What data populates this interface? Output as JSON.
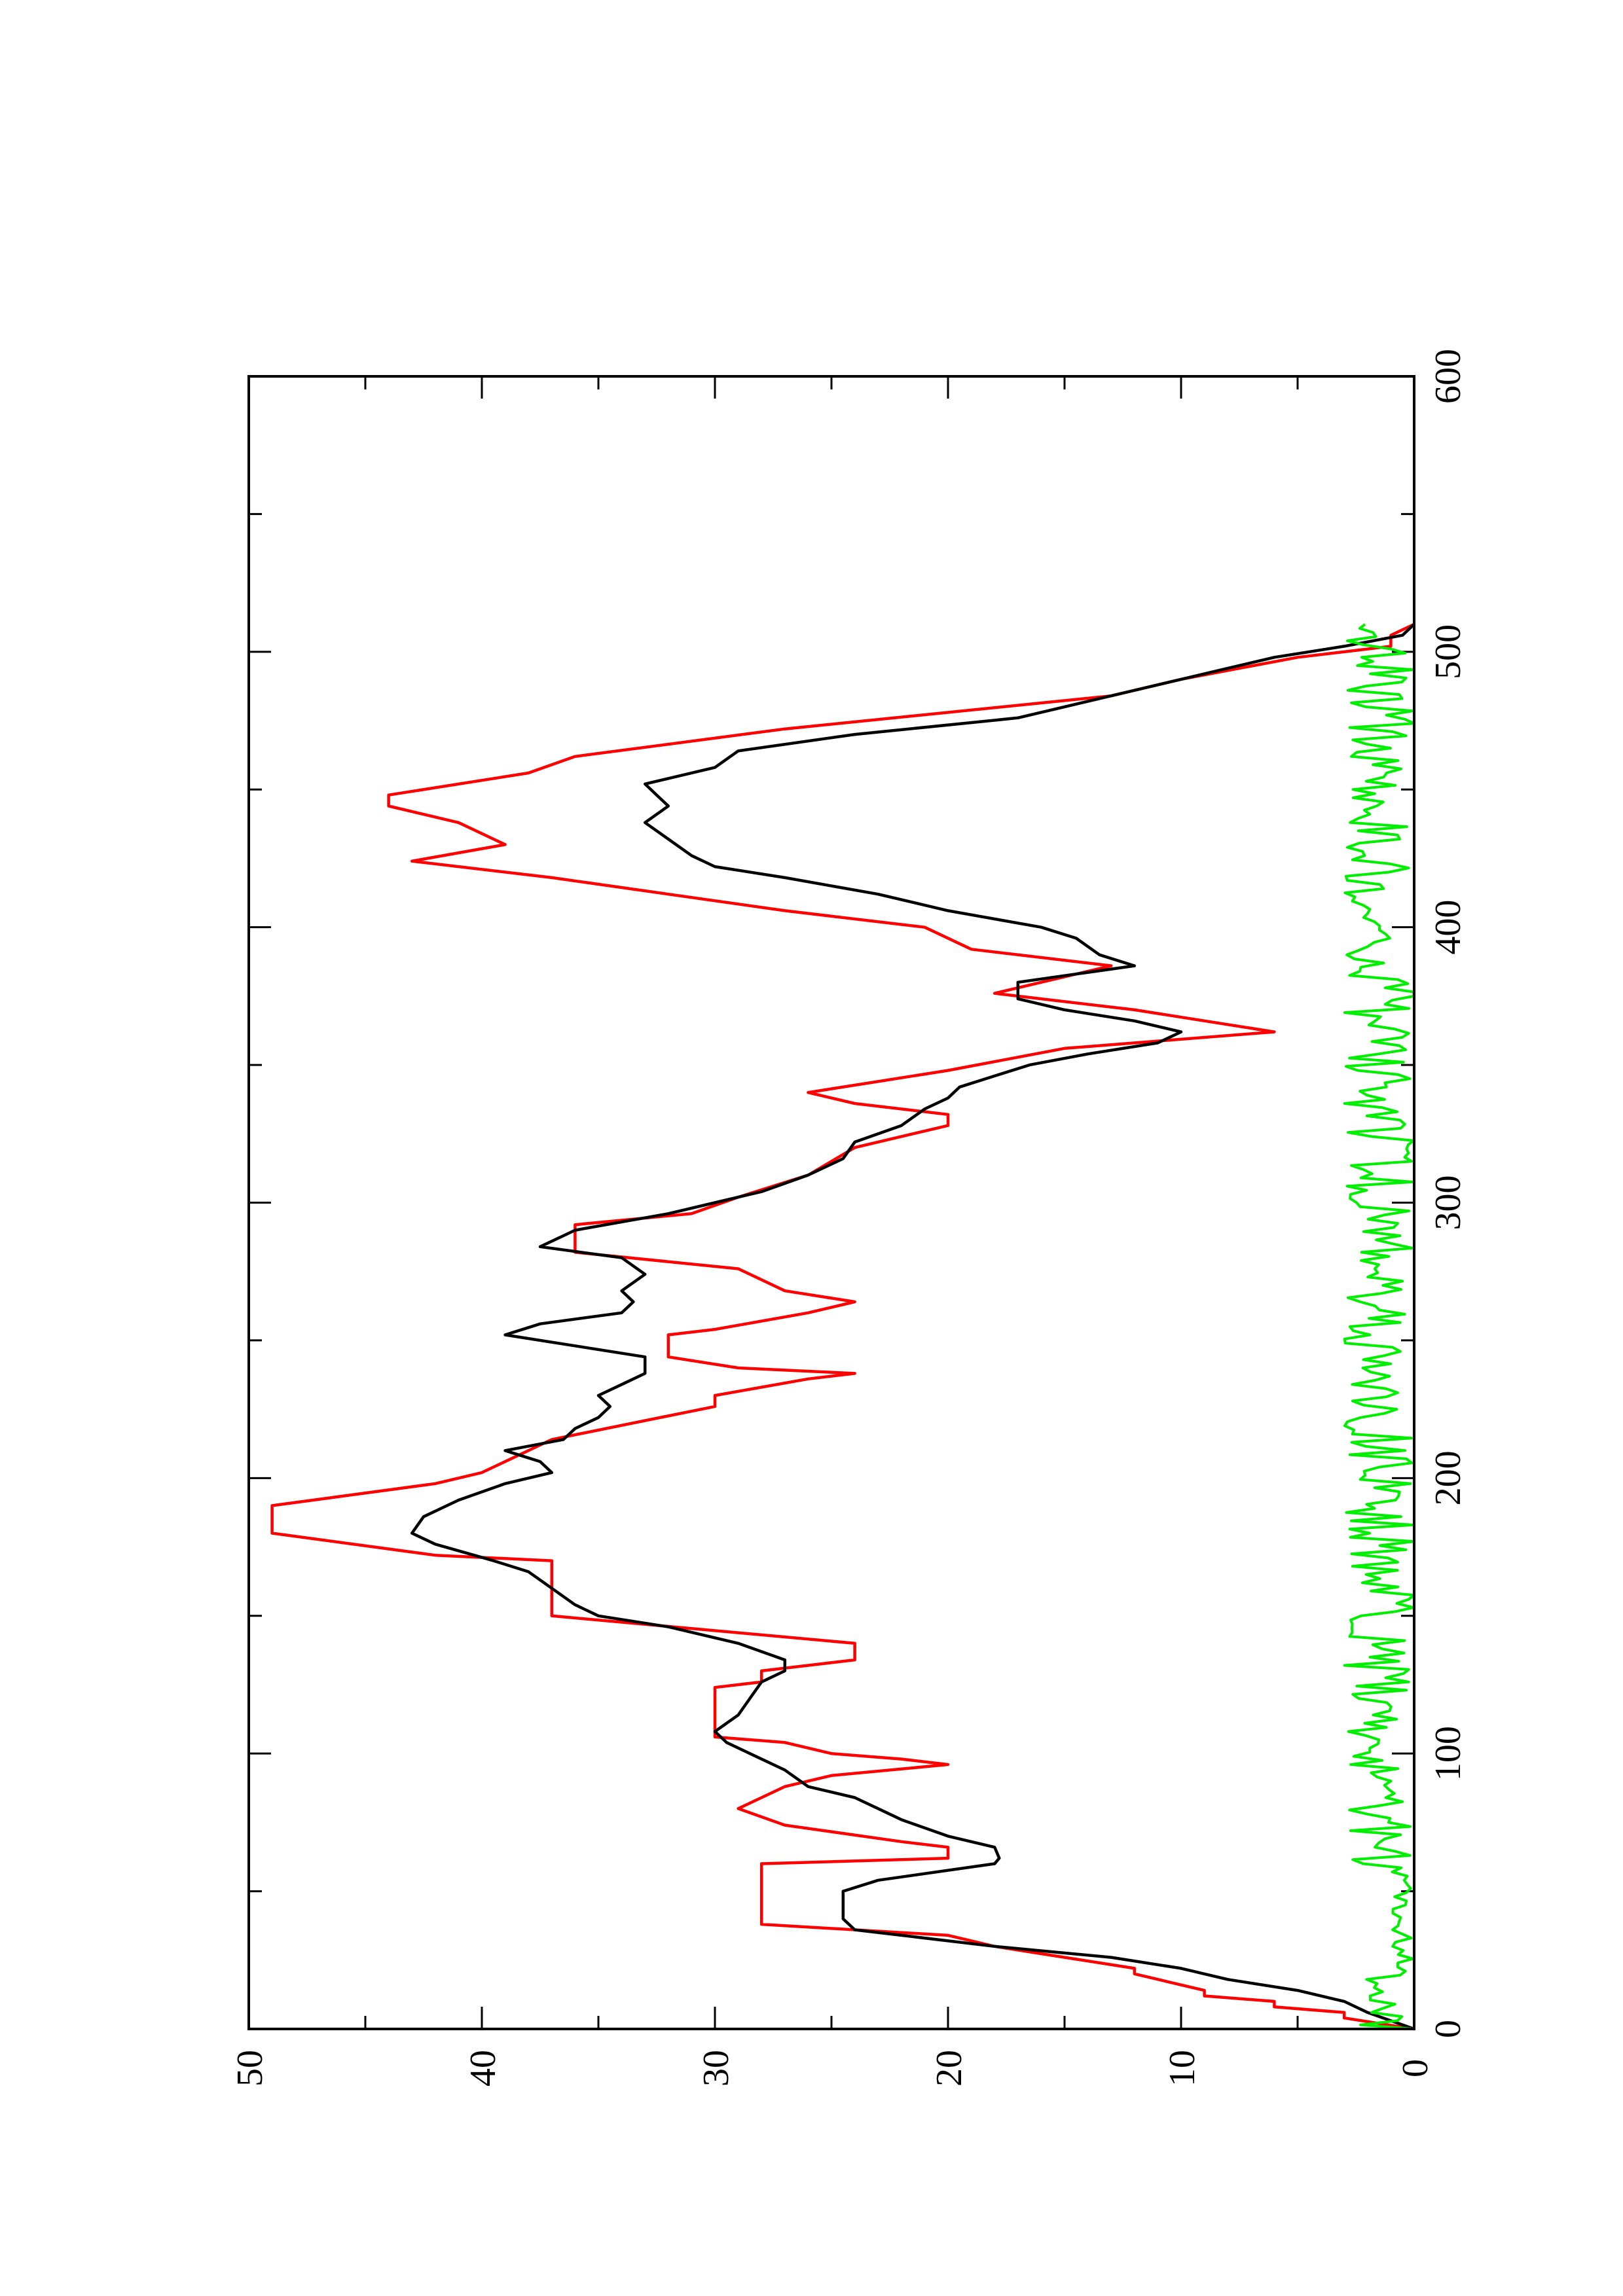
{
  "chart_data": {
    "type": "line",
    "orientation": "rotated 90 degrees counter-clockwise",
    "title": "",
    "xlabel": "",
    "ylabel": "",
    "xlim": [
      0,
      600
    ],
    "ylim": [
      0,
      50
    ],
    "x_ticks": [
      0,
      100,
      200,
      300,
      400,
      500,
      600
    ],
    "x_minor_ticks": [
      50,
      150,
      250,
      350,
      450,
      550
    ],
    "y_ticks": [
      0,
      10,
      20,
      30,
      40,
      50
    ],
    "y_minor_ticks": [
      5,
      15,
      25,
      35,
      45
    ],
    "grid": false,
    "legend": "none",
    "series": [
      {
        "color": "#ff0000",
        "shape": "step",
        "points": [
          [
            0,
            0
          ],
          [
            4,
            3
          ],
          [
            6,
            3
          ],
          [
            8,
            6
          ],
          [
            10,
            6
          ],
          [
            12,
            9
          ],
          [
            14,
            9
          ],
          [
            20,
            12
          ],
          [
            22,
            12
          ],
          [
            26,
            15
          ],
          [
            30,
            18
          ],
          [
            34,
            20
          ],
          [
            38,
            28
          ],
          [
            50,
            28
          ],
          [
            60,
            28
          ],
          [
            62,
            20
          ],
          [
            66,
            20
          ],
          [
            68,
            22
          ],
          [
            74,
            27
          ],
          [
            80,
            29
          ],
          [
            84,
            28
          ],
          [
            88,
            27
          ],
          [
            92,
            25
          ],
          [
            96,
            20
          ],
          [
            98,
            22
          ],
          [
            100,
            25
          ],
          [
            104,
            27
          ],
          [
            106,
            30
          ],
          [
            110,
            30
          ],
          [
            122,
            30
          ],
          [
            124,
            30
          ],
          [
            126,
            28
          ],
          [
            130,
            28
          ],
          [
            134,
            24
          ],
          [
            140,
            24
          ],
          [
            150,
            37
          ],
          [
            170,
            37
          ],
          [
            172,
            42
          ],
          [
            180,
            49
          ],
          [
            190,
            49
          ],
          [
            198,
            42
          ],
          [
            202,
            40
          ],
          [
            214,
            37
          ],
          [
            226,
            30
          ],
          [
            230,
            30
          ],
          [
            236,
            26
          ],
          [
            238,
            24
          ],
          [
            240,
            29
          ],
          [
            244,
            32
          ],
          [
            252,
            32
          ],
          [
            254,
            30
          ],
          [
            260,
            26
          ],
          [
            264,
            24
          ],
          [
            268,
            27
          ],
          [
            276,
            29
          ],
          [
            282,
            36
          ],
          [
            292,
            36
          ],
          [
            296,
            31
          ],
          [
            302,
            29
          ],
          [
            310,
            26
          ],
          [
            320,
            24
          ],
          [
            328,
            20
          ],
          [
            332,
            20
          ],
          [
            336,
            24
          ],
          [
            340,
            26
          ],
          [
            348,
            20
          ],
          [
            356,
            15
          ],
          [
            362,
            6
          ],
          [
            370,
            12
          ],
          [
            376,
            18
          ],
          [
            380,
            16
          ],
          [
            386,
            13
          ],
          [
            392,
            19
          ],
          [
            400,
            21
          ],
          [
            406,
            27
          ],
          [
            418,
            37
          ],
          [
            424,
            43
          ],
          [
            430,
            39
          ],
          [
            438,
            41
          ],
          [
            444,
            44
          ],
          [
            448,
            44
          ],
          [
            456,
            38
          ],
          [
            462,
            36
          ],
          [
            472,
            27
          ],
          [
            484,
            13
          ],
          [
            490,
            10
          ],
          [
            498,
            5
          ],
          [
            502,
            1
          ],
          [
            506,
            1
          ],
          [
            510,
            0
          ]
        ]
      },
      {
        "color": "#000000",
        "shape": "line",
        "points": [
          [
            0,
            0
          ],
          [
            6,
            2
          ],
          [
            10,
            3
          ],
          [
            14,
            5
          ],
          [
            18,
            8
          ],
          [
            22,
            10
          ],
          [
            26,
            13
          ],
          [
            30,
            18
          ],
          [
            34,
            22
          ],
          [
            36,
            24
          ],
          [
            40,
            24.5
          ],
          [
            50,
            24.5
          ],
          [
            54,
            23
          ],
          [
            60,
            18
          ],
          [
            62,
            17.8
          ],
          [
            66,
            18
          ],
          [
            70,
            20
          ],
          [
            76,
            22
          ],
          [
            80,
            23
          ],
          [
            84,
            24
          ],
          [
            88,
            26
          ],
          [
            94,
            27
          ],
          [
            100,
            28.5
          ],
          [
            104,
            29.5
          ],
          [
            108,
            30
          ],
          [
            114,
            29
          ],
          [
            120,
            28.5
          ],
          [
            126,
            28
          ],
          [
            130,
            27
          ],
          [
            134,
            27
          ],
          [
            140,
            29
          ],
          [
            146,
            32
          ],
          [
            150,
            35
          ],
          [
            154,
            36
          ],
          [
            160,
            37
          ],
          [
            166,
            38
          ],
          [
            170,
            39.5
          ],
          [
            176,
            42
          ],
          [
            180,
            43
          ],
          [
            186,
            42.5
          ],
          [
            192,
            41
          ],
          [
            198,
            39
          ],
          [
            202,
            37
          ],
          [
            206,
            37.5
          ],
          [
            210,
            39
          ],
          [
            214,
            36.5
          ],
          [
            218,
            36
          ],
          [
            222,
            35
          ],
          [
            226,
            34.5
          ],
          [
            230,
            35
          ],
          [
            234,
            34
          ],
          [
            238,
            33
          ],
          [
            244,
            33
          ],
          [
            248,
            36
          ],
          [
            252,
            39
          ],
          [
            256,
            37.5
          ],
          [
            260,
            34
          ],
          [
            264,
            33.5
          ],
          [
            268,
            34
          ],
          [
            274,
            33
          ],
          [
            280,
            34
          ],
          [
            284,
            37.5
          ],
          [
            290,
            36
          ],
          [
            296,
            32
          ],
          [
            300,
            30
          ],
          [
            304,
            28
          ],
          [
            310,
            26
          ],
          [
            316,
            24.5
          ],
          [
            322,
            24
          ],
          [
            328,
            22
          ],
          [
            334,
            21
          ],
          [
            338,
            20
          ],
          [
            342,
            19.5
          ],
          [
            346,
            18
          ],
          [
            350,
            16.5
          ],
          [
            354,
            14
          ],
          [
            358,
            11
          ],
          [
            362,
            10
          ],
          [
            366,
            12
          ],
          [
            370,
            15
          ],
          [
            374,
            17
          ],
          [
            380,
            17
          ],
          [
            386,
            12
          ],
          [
            390,
            13.5
          ],
          [
            396,
            14.5
          ],
          [
            400,
            16
          ],
          [
            406,
            20
          ],
          [
            412,
            23
          ],
          [
            418,
            27
          ],
          [
            422,
            30
          ],
          [
            426,
            31
          ],
          [
            432,
            32
          ],
          [
            438,
            33
          ],
          [
            444,
            32
          ],
          [
            448,
            32.5
          ],
          [
            452,
            33
          ],
          [
            458,
            30
          ],
          [
            464,
            29
          ],
          [
            470,
            24
          ],
          [
            476,
            17
          ],
          [
            482,
            14
          ],
          [
            488,
            11
          ],
          [
            494,
            8
          ],
          [
            498,
            6
          ],
          [
            502,
            3
          ],
          [
            506,
            0.5
          ],
          [
            510,
            0
          ]
        ]
      },
      {
        "color": "#00ee00",
        "shape": "noise",
        "x_start": 0,
        "x_end": 510,
        "y_range": [
          0,
          3
        ]
      }
    ]
  }
}
